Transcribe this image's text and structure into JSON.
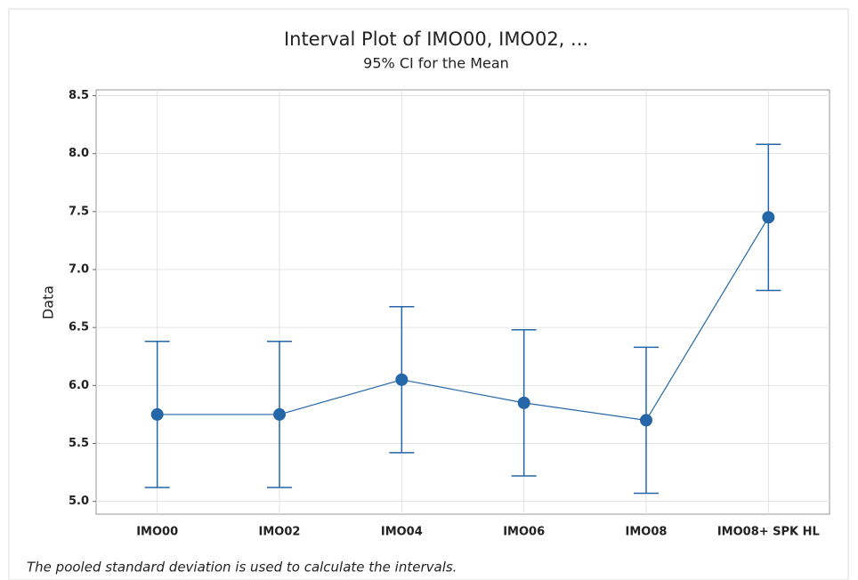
{
  "chart_data": {
    "type": "interval",
    "title": "Interval Plot of IMO00, IMO02, ...",
    "subtitle": "95% CI for the Mean",
    "y_label": "Data",
    "footnote": "The pooled standard deviation is used to calculate the intervals.",
    "categories": [
      "IMO00",
      "IMO02",
      "IMO04",
      "IMO06",
      "IMO08",
      "IMO08+ SPK HL"
    ],
    "values": [
      5.75,
      5.75,
      6.05,
      5.85,
      5.7,
      7.45
    ],
    "errors": [
      0.63,
      0.63,
      0.63,
      0.63,
      0.63,
      0.63
    ],
    "color": "#2466a8",
    "ylim": [
      4.89,
      8.55
    ],
    "yticks": [
      {
        "value": 5,
        "label": "5.0"
      },
      {
        "value": 5.5,
        "label": "5.5"
      },
      {
        "value": 6,
        "label": "6.0"
      },
      {
        "value": 6.5,
        "label": "6.5"
      },
      {
        "value": 7,
        "label": "7.0"
      },
      {
        "value": 7.5,
        "label": "7.5"
      },
      {
        "value": 8,
        "label": "8.0"
      },
      {
        "value": 8.5,
        "label": "8.5"
      }
    ],
    "grid": true
  }
}
